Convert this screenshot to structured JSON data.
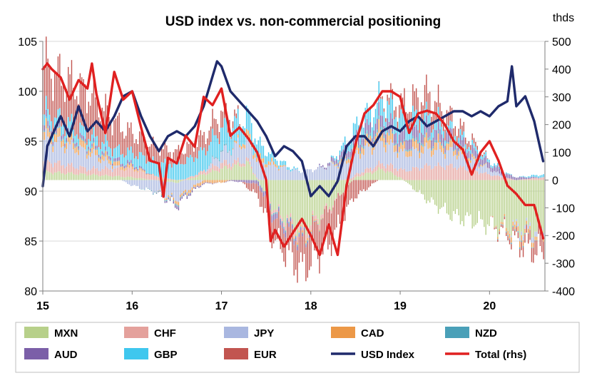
{
  "chart_data": {
    "type": "bar+line",
    "title": "USD index vs. non-commercial positioning",
    "right_axis_unit": "thds",
    "x_ticks": [
      15,
      16,
      17,
      18,
      19,
      20
    ],
    "x_range": [
      15,
      20.62
    ],
    "left_axis": {
      "ticks": [
        80,
        85,
        90,
        95,
        100,
        105
      ],
      "ylim": [
        80,
        105
      ]
    },
    "right_axis": {
      "ticks": [
        -400,
        -300,
        -200,
        -100,
        0,
        100,
        200,
        300,
        400,
        500
      ],
      "ylim": [
        -400,
        500
      ]
    },
    "grid": true,
    "legend_position": "bottom",
    "colors": {
      "MXN": "#b7d08a",
      "CHF": "#e4a19c",
      "JPY": "#a9b7e0",
      "CAD": "#ec9847",
      "NZD": "#4aa0b8",
      "AUD": "#7b5fa8",
      "GBP": "#3fc7ee",
      "EUR": "#c25550",
      "USD Index": "#1f2a6b",
      "Total (rhs)": "#e02020"
    },
    "legend": [
      "MXN",
      "CHF",
      "JPY",
      "CAD",
      "NZD",
      "AUD",
      "GBP",
      "EUR",
      "USD Index",
      "Total (rhs)"
    ],
    "stack_series": [
      {
        "name": "MXN",
        "axis": "right",
        "x": [
          15.0,
          15.5,
          16.0,
          16.5,
          17.0,
          17.3,
          17.6,
          17.9,
          18.2,
          18.5,
          18.8,
          19.0,
          19.3,
          19.6,
          20.0,
          20.3,
          20.6
        ],
        "values": [
          30,
          20,
          10,
          -10,
          40,
          60,
          -110,
          -180,
          -100,
          10,
          40,
          10,
          -70,
          -130,
          -160,
          -170,
          -180
        ]
      },
      {
        "name": "CHF",
        "axis": "right",
        "x": [
          15.0,
          15.5,
          16.0,
          16.5,
          17.0,
          17.3,
          17.6,
          17.9,
          18.2,
          18.5,
          18.8,
          19.0,
          19.3,
          19.6,
          20.0,
          20.3,
          20.6
        ],
        "values": [
          40,
          20,
          30,
          0,
          20,
          10,
          -10,
          -20,
          -10,
          10,
          20,
          30,
          50,
          50,
          20,
          0,
          10
        ]
      },
      {
        "name": "JPY",
        "axis": "right",
        "x": [
          15.0,
          15.5,
          16.0,
          16.5,
          17.0,
          17.3,
          17.6,
          17.9,
          18.2,
          18.5,
          18.8,
          19.0,
          19.3,
          19.6,
          20.0,
          20.3,
          20.6
        ],
        "values": [
          80,
          60,
          -20,
          -60,
          40,
          70,
          50,
          30,
          50,
          70,
          80,
          60,
          60,
          50,
          20,
          -10,
          -20
        ]
      },
      {
        "name": "CAD",
        "axis": "right",
        "x": [
          15.0,
          15.5,
          16.0,
          16.5,
          17.0,
          17.3,
          17.6,
          17.9,
          18.2,
          18.5,
          18.8,
          19.0,
          19.3,
          19.6,
          20.0,
          20.3,
          20.6
        ],
        "values": [
          30,
          20,
          10,
          -10,
          -10,
          20,
          10,
          -10,
          0,
          20,
          40,
          20,
          30,
          20,
          0,
          -20,
          -10
        ]
      },
      {
        "name": "NZD",
        "axis": "right",
        "x": [
          15.0,
          15.5,
          16.0,
          16.5,
          17.0,
          17.3,
          17.6,
          17.9,
          18.2,
          18.5,
          18.8,
          19.0,
          19.3,
          19.6,
          20.0,
          20.3,
          20.6
        ],
        "values": [
          5,
          5,
          0,
          -5,
          5,
          0,
          -5,
          -5,
          0,
          10,
          10,
          5,
          10,
          5,
          0,
          -5,
          0
        ]
      },
      {
        "name": "AUD",
        "axis": "right",
        "x": [
          15.0,
          15.5,
          16.0,
          16.5,
          17.0,
          17.3,
          17.6,
          17.9,
          18.2,
          18.5,
          18.8,
          19.0,
          19.3,
          19.6,
          20.0,
          20.3,
          20.6
        ],
        "values": [
          20,
          10,
          10,
          -10,
          0,
          -10,
          -20,
          -10,
          10,
          30,
          40,
          40,
          40,
          30,
          20,
          10,
          0
        ]
      },
      {
        "name": "GBP",
        "axis": "right",
        "x": [
          15.0,
          15.5,
          16.0,
          16.5,
          17.0,
          17.3,
          17.6,
          17.9,
          18.2,
          18.5,
          18.8,
          19.0,
          19.3,
          19.6,
          20.0,
          20.3,
          20.6
        ],
        "values": [
          40,
          30,
          40,
          60,
          80,
          70,
          20,
          0,
          0,
          40,
          60,
          60,
          40,
          20,
          10,
          0,
          10
        ]
      },
      {
        "name": "EUR",
        "axis": "right",
        "x": [
          15.0,
          15.5,
          16.0,
          16.5,
          17.0,
          17.3,
          17.6,
          17.9,
          18.2,
          18.5,
          18.8,
          19.0,
          19.3,
          19.6,
          20.0,
          20.3,
          20.6
        ],
        "values": [
          170,
          150,
          70,
          40,
          60,
          -20,
          -80,
          -100,
          -130,
          -60,
          10,
          50,
          80,
          40,
          0,
          -20,
          -60
        ]
      }
    ],
    "line_series": [
      {
        "name": "USD Index",
        "axis": "left",
        "x": [
          15.0,
          15.05,
          15.1,
          15.2,
          15.3,
          15.4,
          15.5,
          15.6,
          15.7,
          15.8,
          15.9,
          16.0,
          16.1,
          16.2,
          16.3,
          16.4,
          16.5,
          16.6,
          16.7,
          16.8,
          16.9,
          16.95,
          17.0,
          17.1,
          17.2,
          17.3,
          17.4,
          17.5,
          17.6,
          17.7,
          17.8,
          17.9,
          18.0,
          18.1,
          18.2,
          18.3,
          18.4,
          18.5,
          18.6,
          18.7,
          18.8,
          18.9,
          19.0,
          19.1,
          19.2,
          19.3,
          19.4,
          19.5,
          19.6,
          19.7,
          19.8,
          19.9,
          20.0,
          20.1,
          20.2,
          20.25,
          20.3,
          20.4,
          20.5,
          20.55,
          20.6
        ],
        "values": [
          90.5,
          94.5,
          95.5,
          97.5,
          95.5,
          98.5,
          96.0,
          97.0,
          96.0,
          97.5,
          99.5,
          100.0,
          97.5,
          95.5,
          94.0,
          95.5,
          96.0,
          95.5,
          96.5,
          98.5,
          101.5,
          103.0,
          102.5,
          100.0,
          99.0,
          98.0,
          97.0,
          95.5,
          93.5,
          94.5,
          94.0,
          93.0,
          89.5,
          90.5,
          89.5,
          91.0,
          94.5,
          95.5,
          95.5,
          94.5,
          96.0,
          96.5,
          96.0,
          97.0,
          97.5,
          96.5,
          97.0,
          97.5,
          98.0,
          98.0,
          97.5,
          98.0,
          97.5,
          98.5,
          99.0,
          102.5,
          98.5,
          99.5,
          97.0,
          95.0,
          93.0
        ]
      },
      {
        "name": "Total (rhs)",
        "axis": "right",
        "x": [
          15.0,
          15.05,
          15.1,
          15.2,
          15.3,
          15.4,
          15.5,
          15.55,
          15.6,
          15.7,
          15.8,
          15.9,
          16.0,
          16.1,
          16.2,
          16.3,
          16.35,
          16.4,
          16.5,
          16.6,
          16.7,
          16.8,
          16.9,
          17.0,
          17.1,
          17.2,
          17.3,
          17.4,
          17.5,
          17.55,
          17.6,
          17.7,
          17.8,
          17.9,
          18.0,
          18.1,
          18.2,
          18.3,
          18.4,
          18.5,
          18.6,
          18.7,
          18.8,
          18.9,
          19.0,
          19.1,
          19.2,
          19.3,
          19.4,
          19.5,
          19.6,
          19.7,
          19.8,
          19.9,
          20.0,
          20.1,
          20.2,
          20.3,
          20.4,
          20.5,
          20.6
        ],
        "values": [
          400,
          420,
          400,
          370,
          290,
          360,
          330,
          420,
          310,
          170,
          390,
          290,
          320,
          190,
          70,
          60,
          -60,
          80,
          60,
          160,
          120,
          300,
          270,
          330,
          160,
          190,
          150,
          100,
          0,
          -220,
          -180,
          -240,
          -190,
          -140,
          -200,
          -270,
          -160,
          -270,
          -20,
          130,
          240,
          270,
          320,
          320,
          300,
          170,
          240,
          250,
          240,
          200,
          140,
          110,
          20,
          100,
          140,
          70,
          -20,
          -50,
          -90,
          -90,
          -210
        ]
      }
    ]
  }
}
